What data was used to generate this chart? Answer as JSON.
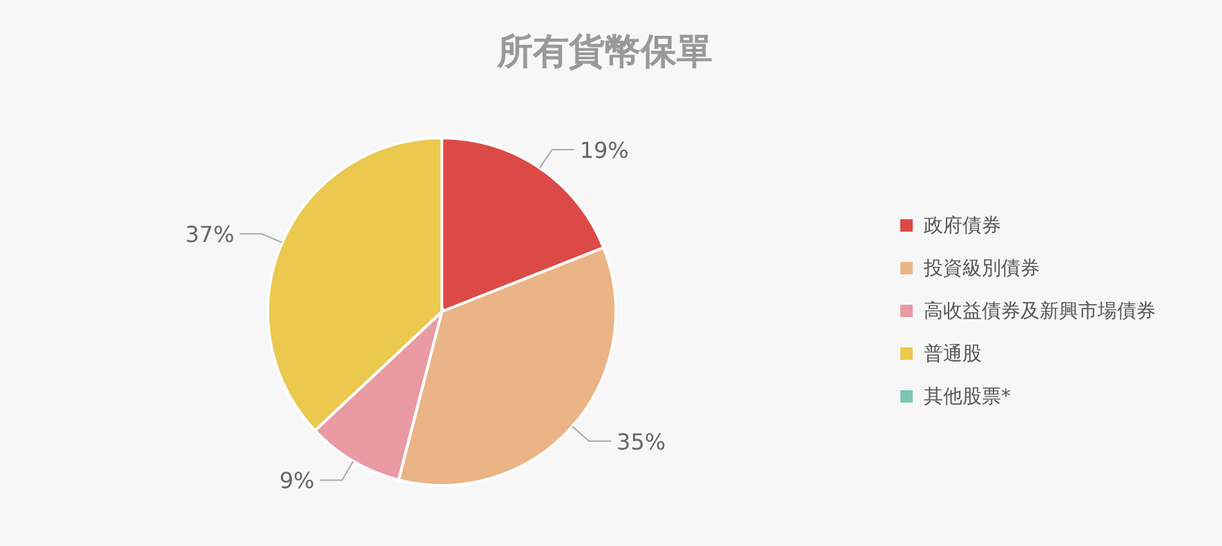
{
  "chart_data": {
    "type": "pie",
    "title": "所有貨幣保單",
    "categories": [
      "政府債券",
      "投資級別債券",
      "高收益債券及新興市場債券",
      "普通股",
      "其他股票*"
    ],
    "values": [
      19,
      35,
      9,
      37,
      0
    ],
    "colors": [
      "#dc4a47",
      "#ebb486",
      "#e99aa3",
      "#ebc84e",
      "#7cc7b2"
    ],
    "value_labels": [
      "19%",
      "35%",
      "9%",
      "37%",
      null
    ],
    "legend": "right"
  }
}
